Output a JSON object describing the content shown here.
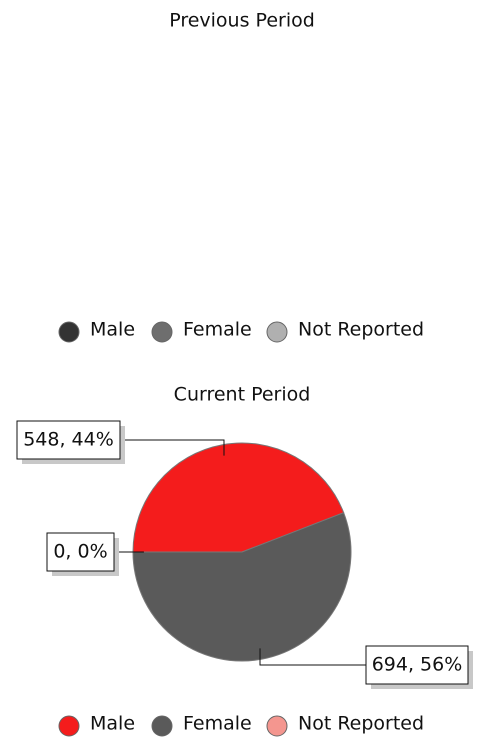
{
  "chart_data": [
    {
      "type": "pie",
      "title": "Previous Period",
      "categories": [
        "Male",
        "Female",
        "Not Reported"
      ],
      "colors": [
        "#333333",
        "#6e6e6e",
        "#b0b0b0"
      ]
    },
    {
      "type": "pie",
      "title": "Current Period",
      "categories": [
        "Male",
        "Female",
        "Not Reported"
      ],
      "values": [
        548,
        694,
        0
      ],
      "value_labels": [
        "548, 44%",
        "694, 56%",
        "0, 0%"
      ],
      "colors": [
        "#f41c1c",
        "#5a5a5a",
        "#f4968f"
      ]
    }
  ]
}
